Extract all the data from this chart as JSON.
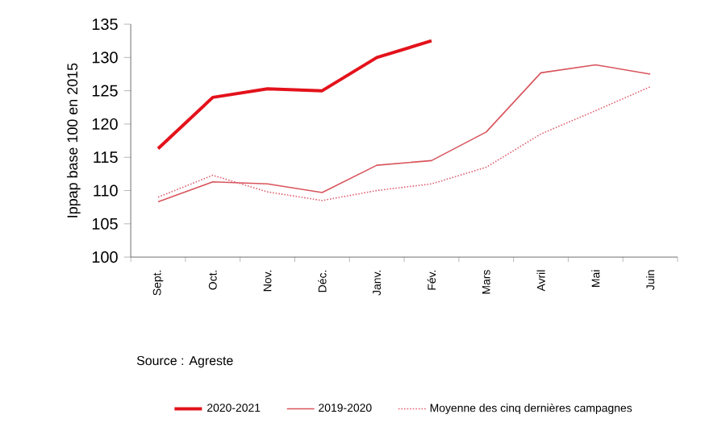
{
  "chart_data": {
    "type": "line",
    "ylabel": "Ippap base 100 en 2015",
    "categories": [
      "Sept.",
      "Oct.",
      "Nov.",
      "Déc.",
      "Janv.",
      "Fév.",
      "Mars",
      "Avril",
      "Mai",
      "Juin"
    ],
    "series": [
      {
        "name": "2020-2021",
        "color": "#e3121b",
        "line_style": "solid",
        "values": [
          116.3,
          124.0,
          125.3,
          125.0,
          130.0,
          132.5,
          null,
          null,
          null,
          null
        ]
      },
      {
        "name": "2019-2020",
        "color": "#d9545c",
        "line_style": "solid",
        "values": [
          108.3,
          111.3,
          111.0,
          109.7,
          113.8,
          114.5,
          118.8,
          127.7,
          128.9,
          127.5
        ]
      },
      {
        "name": "Moyenne des cinq dernières campagnes",
        "color": "#e06070",
        "line_style": "dotted",
        "values": [
          109.0,
          112.3,
          109.8,
          108.5,
          110.0,
          111.0,
          113.5,
          118.5,
          122.0,
          125.6
        ]
      }
    ],
    "ylim": [
      100,
      135
    ],
    "yticks": [
      100,
      105,
      110,
      115,
      120,
      125,
      130,
      135
    ],
    "grid": false,
    "legend": "bottom",
    "marker": "none",
    "annotations": [
      "Source : Agreste"
    ]
  }
}
